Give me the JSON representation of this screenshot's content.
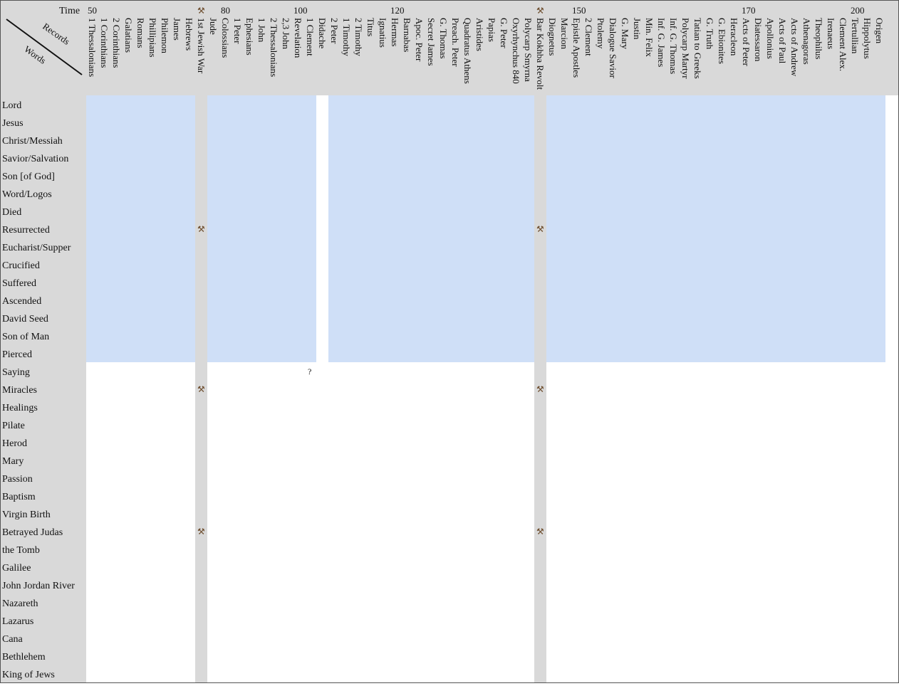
{
  "chart_data": {
    "type": "heatmap",
    "corner": {
      "time_label": "Time",
      "records_label": "Records",
      "words_label": "Words"
    },
    "time_ticks": [
      {
        "label": "50",
        "col": 0
      },
      {
        "label": "80",
        "col": 11
      },
      {
        "label": "100",
        "col": 17
      },
      {
        "label": "120",
        "col": 25
      },
      {
        "label": "150",
        "col": 40
      },
      {
        "label": "170",
        "col": 54
      },
      {
        "label": "200",
        "col": 63
      }
    ],
    "records": [
      "1 Thessalonians",
      "1 Corinthians",
      "2 Corinthians",
      "Galatians",
      "Romans",
      "Phillipians",
      "Philemon",
      "James",
      "Hebrews",
      "1st Jewish War",
      "Jude",
      "Colossians",
      "1 Peter",
      "Ephesians",
      "1 John",
      "2 Thessalonians",
      "2,3 John",
      "Revelation",
      "1 Clement",
      "Didache",
      "2 Peter",
      "1 Timothy",
      "2 Timothy",
      "Titus",
      "Ignatius",
      "Hermas",
      "Barnabas",
      "Apoc. Peter",
      "Secret James",
      "G. Thomas",
      "Preach. Peter",
      "Quadratus Athens",
      "Aristides",
      "Papias",
      "G. Peter",
      "Oxyrhynchus 840",
      "Polycarp Smyrna",
      "Bar Kokhba Revolt",
      "Diognetus",
      "Marcion",
      "Epistle Apostles",
      "2 Clement",
      "Ptolemy",
      "Dialogue Savior",
      "G. Mary",
      "Justin",
      "Min. Felix",
      "Inf. G. James",
      "Inf. G. Thomas",
      "Polycarp Martyr",
      "Tatian to Greeks",
      "G. Truth",
      "G. Ebionites",
      "Heracleon",
      "Acts of Peter",
      "Diatessaron",
      "Apollonius",
      "Acts of Paul",
      "Acts of Andrew",
      "Athenagoras",
      "Theophilus",
      "Irenaeus",
      "Clement Alex.",
      "Tertullian",
      "Hippolytus",
      "Origen"
    ],
    "event_columns": [
      9,
      37
    ],
    "event_label": "1st Jewish War / Bar Kokhba Revolt",
    "words": [
      "Lord",
      "Jesus",
      "Christ/Messiah",
      "Savior/Salvation",
      "Son [of God]",
      "Word/Logos",
      "Died",
      "Resurrected",
      "Eucharist/Supper",
      "Crucified",
      "Suffered",
      "Ascended",
      "David Seed",
      "Son of Man",
      "Pierced",
      "Saying",
      "Miracles",
      "Healings",
      "Pilate",
      "Herod",
      "Mary",
      "Passion",
      "Baptism",
      "Virgin Birth",
      "Betrayed Judas",
      "the Tomb",
      "Galilee",
      "John Jordan River",
      "Nazareth",
      "Lazarus",
      "Cana",
      "Bethlehem",
      "King of Jews"
    ],
    "cell_encoding": "0 = not attested, 1 = attested; rows 0-14 theological terms (blue), rows 15-32 biographical details (tan)",
    "cells": [
      "111111111011111111101111111111111111101111111111111111111111111111",
      "111111111011111111101111111111111111101111111111111111111111111111",
      "111111111011111111101111111111111111101111111111111111111111111111",
      "111111111011111111101111111111111111101111111111111111111111111111",
      "111111111011111111101111111111111111101111111111111111111111111111",
      "111111111011111111101111111111111111101111111111111111111111111111",
      "111111111011111111101111111111111111101111111111111111111111111111",
      "111111111011111111101111111111111111101111111111111111111111111111",
      "111111111011111111101111111111111111101111111111111111111111111111",
      "111111111011111111101111111111111111101111111111111111111111111111",
      "111111111011111111101111111111111111101111111111111111111111111111",
      "111111111011111111101111111111111111101111111111111111111111111111",
      "111111111011111111101111111111111111101111111111111111111111111111",
      "111111111011111111101111111111111111101111111111111111111111111111",
      "111111111011111111101111111111111111101111111111111111111111111111",
      "000000000000000000000000000000000000000000000000000000000000000000",
      "000000000000000000000000000000000000000000000000000000000000000000",
      "000000000000000000000000000000000000000000000000000000000000000000",
      "000000000000000000000000000000000000000000000000000000000000000000",
      "000000000000000000000000000000000000000000000000000000000000000000",
      "000000000000000000000000000000000000000000000000000000000000000000",
      "000000000000000000000000000000000000000000000000000000000000000000",
      "000000000000000000000000000000000000000000000000000000000000000000",
      "000000000000000000000000000000000000000000000000000000000000000000",
      "000000000000000000000000000000000000000000000000000000000000000000",
      "000000000000000000000000000000000000000000000000000000000000000000",
      "000000000000000000000000000000000000000000000000000000000000000000",
      "000000000000000000000000000000000000000000000000000000000000000000",
      "000000000000000000000000000000000000000000000000000000000000000000",
      "000000000000000000000000000000000000000000000000000000000000000000",
      "000000000000000000000000000000000000000000000000000000000000000000",
      "000000000000000000000000000000000000000000000000000000000000000000",
      "000000000000000000000000000000000000000000000000000000000000000000"
    ],
    "question_marks": [
      {
        "row": 15,
        "col": 18,
        "text": "?"
      }
    ],
    "colors": {
      "header_background": "#d9d9d9",
      "event_column": "#d9d9d9",
      "theological_fill": "#cfdff7",
      "biographical_fill": "#e9dbb1",
      "empty": "#ffffff",
      "text": "#111111"
    },
    "grid": false,
    "legend": "none"
  }
}
